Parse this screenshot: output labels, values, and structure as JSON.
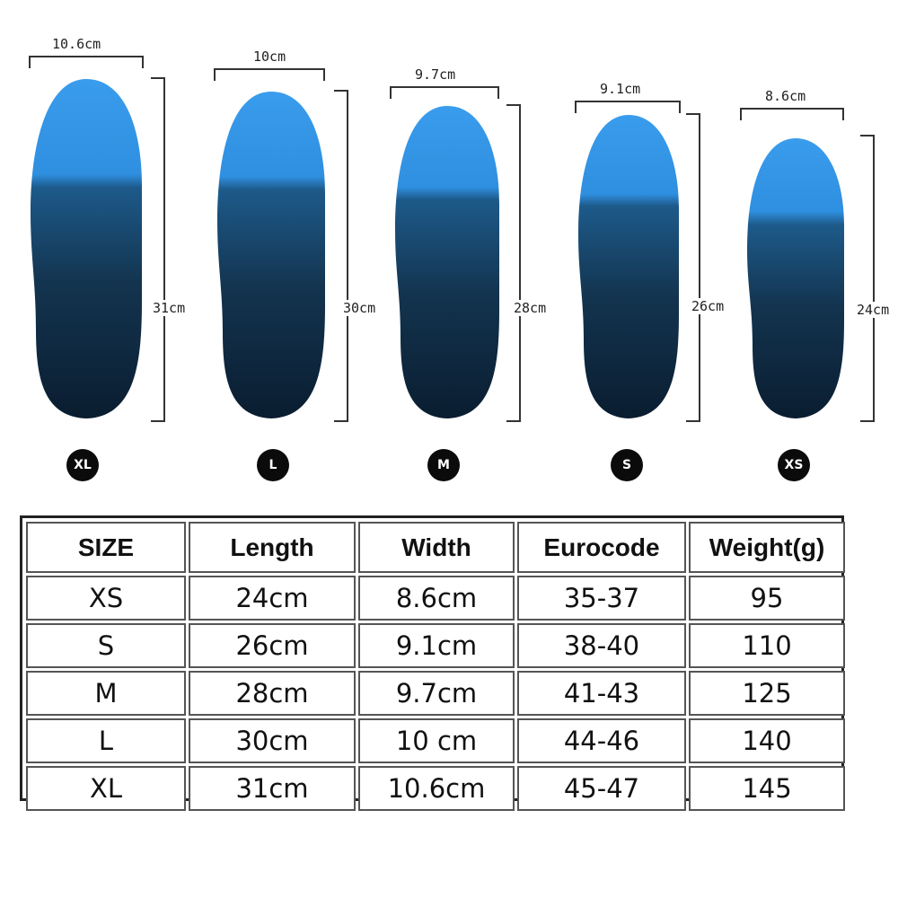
{
  "insoles": [
    {
      "size": "XL",
      "width": "10.6cm",
      "length": "31cm"
    },
    {
      "size": "L",
      "width": "10cm",
      "length": "30cm"
    },
    {
      "size": "M",
      "width": "9.7cm",
      "length": "28cm"
    },
    {
      "size": "S",
      "width": "9.1cm",
      "length": "26cm"
    },
    {
      "size": "XS",
      "width": "8.6cm",
      "length": "24cm"
    }
  ],
  "table": {
    "headers": [
      "SIZE",
      "Length",
      "Width",
      "Eurocode",
      "Weight(g)"
    ],
    "rows": [
      [
        "XS",
        "24cm",
        "8.6cm",
        "35-37",
        "95"
      ],
      [
        "S",
        "26cm",
        "9.1cm",
        "38-40",
        "110"
      ],
      [
        "M",
        "28cm",
        "9.7cm",
        "41-43",
        "125"
      ],
      [
        "L",
        "30cm",
        "10 cm",
        "44-46",
        "140"
      ],
      [
        "XL",
        "31cm",
        "10.6cm",
        "45-47",
        "145"
      ]
    ]
  },
  "colors": {
    "insole_top": "#2f8fe0",
    "insole_mid": "#1d4f7a",
    "insole_bottom": "#0b1f33",
    "badge": "#0b0b0b"
  }
}
